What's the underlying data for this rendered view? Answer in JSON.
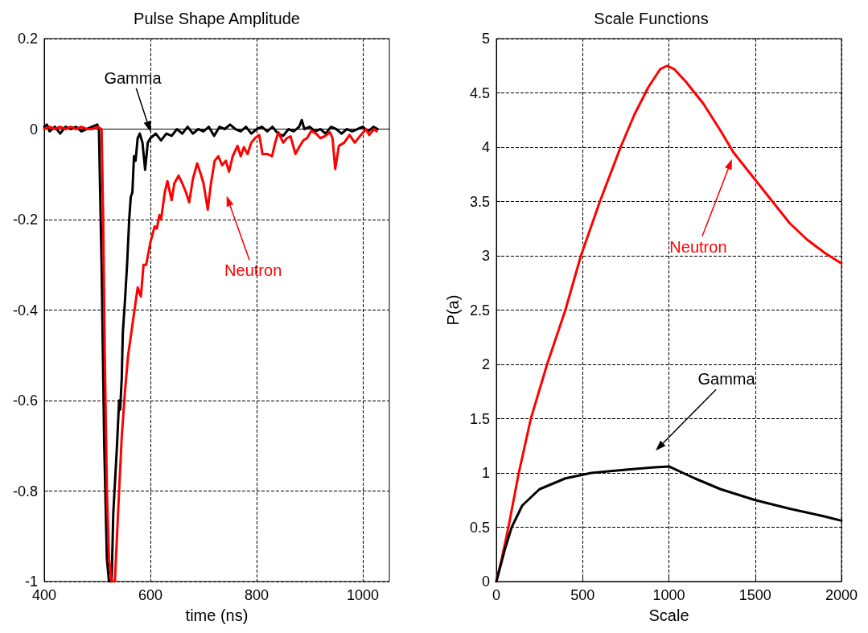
{
  "chart_data": [
    {
      "type": "line",
      "title": "Pulse Shape Amplitude",
      "xlabel": "time (ns)",
      "xlim": [
        400,
        1050
      ],
      "xticks": [
        400,
        600,
        800,
        1000
      ],
      "ylim": [
        -1,
        0.2
      ],
      "yticks": [
        -1,
        -0.8,
        -0.6,
        -0.4,
        -0.2,
        0,
        0.2
      ],
      "grid": true,
      "legend": false,
      "marker": "none",
      "line_style": "solid",
      "series": [
        {
          "name": "Gamma",
          "color": "#000000",
          "x": [
            400,
            405,
            410,
            420,
            430,
            440,
            450,
            460,
            470,
            480,
            490,
            500,
            503,
            508,
            513,
            518,
            522,
            527,
            530,
            537,
            541,
            543,
            546,
            548,
            552,
            556,
            560,
            563,
            566,
            569,
            572,
            576,
            580,
            585,
            590,
            595,
            600,
            610,
            620,
            630,
            640,
            650,
            660,
            670,
            680,
            690,
            700,
            710,
            720,
            730,
            740,
            750,
            760,
            770,
            780,
            790,
            800,
            810,
            820,
            830,
            840,
            850,
            860,
            870,
            880,
            885,
            890,
            900,
            910,
            920,
            930,
            940,
            950,
            960,
            970,
            980,
            990,
            1000,
            1010,
            1020,
            1028
          ],
          "values": [
            0.005,
            0.01,
            -0.005,
            0.005,
            -0.01,
            0.005,
            0,
            0.005,
            -0.005,
            0,
            0.005,
            0.01,
            0,
            -0.3,
            -0.7,
            -0.95,
            -1,
            -1,
            -0.85,
            -0.7,
            -0.6,
            -0.62,
            -0.55,
            -0.45,
            -0.38,
            -0.3,
            -0.2,
            -0.15,
            -0.14,
            -0.06,
            -0.07,
            -0.02,
            -0.01,
            -0.03,
            -0.09,
            -0.03,
            -0.02,
            -0.01,
            -0.025,
            -0.01,
            -0.015,
            0,
            -0.01,
            0.005,
            -0.01,
            0,
            -0.005,
            0.005,
            -0.015,
            0.005,
            0,
            0.01,
            0,
            -0.005,
            0.005,
            -0.01,
            0,
            0.005,
            -0.005,
            0.005,
            -0.01,
            -0.015,
            0,
            -0.005,
            0.005,
            0.02,
            0,
            0.005,
            -0.005,
            0,
            -0.01,
            0.005,
            0,
            -0.01,
            0,
            -0.005,
            0,
            0.005,
            -0.005,
            0.005,
            0
          ]
        },
        {
          "name": "Neutron",
          "color": "#ff0000",
          "x": [
            400,
            410,
            420,
            430,
            440,
            450,
            460,
            470,
            480,
            490,
            500,
            508,
            511,
            514,
            518,
            522,
            527,
            533,
            537,
            541,
            546,
            552,
            558,
            564,
            570,
            576,
            582,
            587,
            592,
            600,
            608,
            612,
            617,
            620,
            627,
            632,
            640,
            645,
            653,
            660,
            667,
            673,
            680,
            688,
            695,
            700,
            708,
            714,
            721,
            728,
            735,
            742,
            748,
            755,
            764,
            770,
            776,
            783,
            790,
            797,
            805,
            811,
            820,
            829,
            835,
            841,
            850,
            857,
            864,
            873,
            880,
            888,
            895,
            903,
            912,
            920,
            928,
            938,
            943,
            948,
            955,
            965,
            975,
            985,
            995,
            1006,
            1012,
            1021,
            1026
          ],
          "values": [
            0,
            0.005,
            0,
            0.005,
            0,
            0.005,
            0,
            0.005,
            0,
            0,
            0.005,
            0,
            -0.2,
            -0.5,
            -0.8,
            -0.95,
            -1,
            -1,
            -0.9,
            -0.8,
            -0.68,
            -0.58,
            -0.5,
            -0.45,
            -0.4,
            -0.35,
            -0.37,
            -0.3,
            -0.3,
            -0.25,
            -0.215,
            -0.22,
            -0.19,
            -0.2,
            -0.14,
            -0.115,
            -0.157,
            -0.12,
            -0.103,
            -0.12,
            -0.14,
            -0.162,
            -0.11,
            -0.076,
            -0.1,
            -0.12,
            -0.178,
            -0.12,
            -0.07,
            -0.06,
            -0.08,
            -0.07,
            -0.094,
            -0.06,
            -0.037,
            -0.06,
            -0.04,
            -0.055,
            -0.03,
            -0.02,
            -0.013,
            -0.055,
            -0.055,
            -0.06,
            -0.03,
            -0.007,
            -0.03,
            -0.02,
            -0.016,
            -0.055,
            -0.04,
            -0.025,
            -0.02,
            -0.004,
            -0.01,
            -0.02,
            -0.016,
            -0.007,
            -0.02,
            -0.088,
            -0.037,
            -0.03,
            -0.013,
            -0.03,
            -0.015,
            0,
            -0.013,
            0,
            -0.005
          ]
        }
      ]
    },
    {
      "type": "line",
      "title": "Scale Functions",
      "xlabel": "Scale",
      "ylabel": "P(a)",
      "xlim": [
        0,
        2000
      ],
      "xticks": [
        0,
        500,
        1000,
        1500,
        2000
      ],
      "ylim": [
        0,
        5
      ],
      "yticks": [
        0,
        0.5,
        1,
        1.5,
        2,
        2.5,
        3,
        3.5,
        4,
        4.5,
        5
      ],
      "grid": true,
      "legend": false,
      "marker": "none",
      "line_style": "solid",
      "series": [
        {
          "name": "Neutron",
          "color": "#ff0000",
          "x": [
            0,
            30,
            70,
            100,
            130,
            200,
            294,
            400,
            490,
            600,
            720,
            800,
            880,
            950,
            990,
            1030,
            1100,
            1200,
            1300,
            1375,
            1500,
            1600,
            1700,
            1800,
            1900,
            2000
          ],
          "values": [
            0,
            0.2,
            0.5,
            0.75,
            1,
            1.5,
            2,
            2.5,
            3,
            3.5,
            4,
            4.3,
            4.55,
            4.72,
            4.75,
            4.72,
            4.6,
            4.4,
            4.15,
            3.95,
            3.7,
            3.5,
            3.3,
            3.15,
            3.03,
            2.93
          ]
        },
        {
          "name": "Gamma",
          "color": "#000000",
          "x": [
            0,
            50,
            89,
            150,
            250,
            400,
            550,
            750,
            900,
            1000,
            1150,
            1300,
            1500,
            1700,
            1900,
            2000
          ],
          "values": [
            0,
            0.3,
            0.5,
            0.7,
            0.85,
            0.95,
            1,
            1.03,
            1.05,
            1.06,
            0.95,
            0.85,
            0.75,
            0.67,
            0.6,
            0.56
          ]
        }
      ]
    }
  ]
}
